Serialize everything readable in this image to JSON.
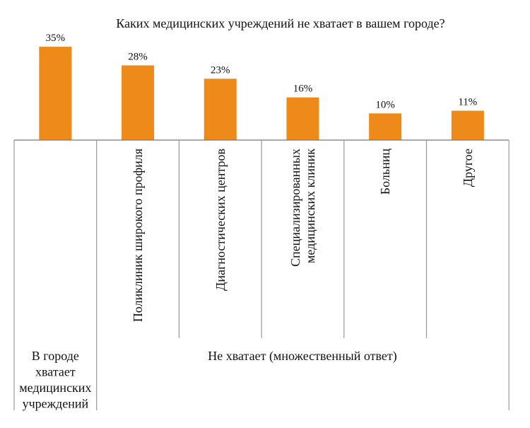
{
  "chart_data": {
    "type": "bar",
    "title": "Каких медицинских учреждений не хватает в вашем городе?",
    "categories": [
      [
        "В городе",
        "хватает",
        "медицинских",
        "учреждений"
      ],
      [
        "Поликлиник широкого профиля"
      ],
      [
        "Диагностических центров"
      ],
      [
        "Специализированных",
        "медицинских клиник"
      ],
      [
        "Больниц"
      ],
      [
        "Другое"
      ]
    ],
    "values": [
      35,
      28,
      23,
      16,
      10,
      11
    ],
    "value_labels": [
      "35%",
      "28%",
      "23%",
      "16%",
      "10%",
      "11%"
    ],
    "group_label": "Не хватает (множественный ответ)",
    "bar_color": "#EE8A1A",
    "xlabel": "",
    "ylabel": "",
    "ylim": [
      0,
      35
    ],
    "grid": false
  }
}
